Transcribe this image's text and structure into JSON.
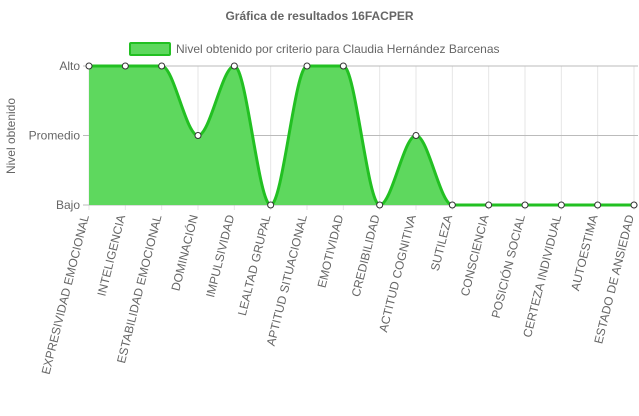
{
  "chart_data": {
    "type": "area",
    "title": "Gráfica de resultados 16FACPER",
    "ylabel": "Nivel obtenido",
    "xlabel": "",
    "y_categories": [
      "Bajo",
      "Promedio",
      "Alto"
    ],
    "categories": [
      "EXPRESIVIDAD EMOCIONAL",
      "INTELIGENCIA",
      "ESTABILIDAD EMOCIONAL",
      "DOMINACIÓN",
      "IMPULSIVIDAD",
      "LEALTAD GRUPAL",
      "APTITUD SITUACIONAL",
      "EMOTIVIDAD",
      "CREDIBILIDAD",
      "ACTITUD COGNITIVA",
      "SUTILEZA",
      "CONSCIENCIA",
      "POSICIÓN SOCIAL",
      "CERTEZA INDIVIDUAL",
      "AUTOESTIMA",
      "ESTADO DE ANSIEDAD"
    ],
    "series": [
      {
        "name": "Nivel obtenido por criterio para Claudia Hernández Barcenas",
        "values": [
          2,
          2,
          2,
          1,
          2,
          0,
          2,
          2,
          0,
          1,
          0,
          0,
          0,
          0,
          0,
          0
        ]
      }
    ],
    "ylim": [
      0,
      2
    ],
    "grid": true,
    "legend": "top-center",
    "colors": {
      "line": "#22c022",
      "fill": "#5ed85e",
      "point_fill": "#ffffff",
      "point_stroke": "#333333",
      "grid": "#e6e6e6",
      "grid_major": "#bbbbbb",
      "text": "#666666",
      "title": "#666666"
    }
  }
}
